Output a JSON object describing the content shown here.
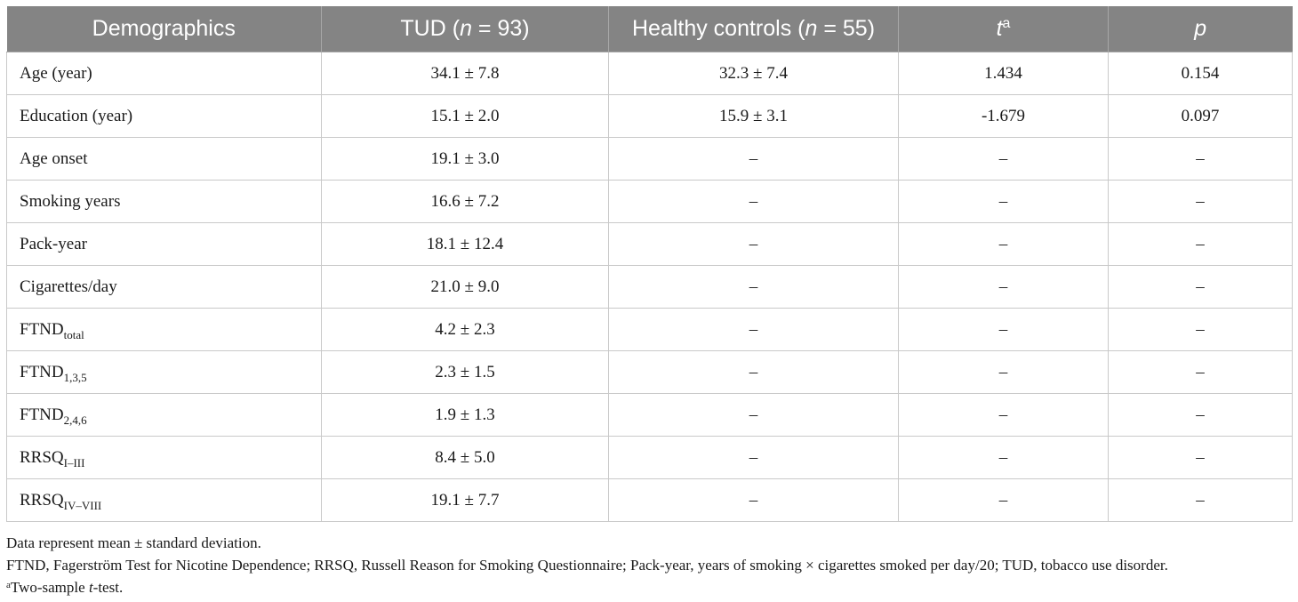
{
  "table": {
    "headers": {
      "demographics": "Demographics",
      "tud_prefix": "TUD (",
      "tud_n": "n",
      "tud_suffix": " = 93)",
      "hc_prefix": "Healthy controls (",
      "hc_n": "n",
      "hc_suffix": " = 55)",
      "t": "t",
      "t_sup": "a",
      "p": "p"
    },
    "rows": [
      {
        "label": "Age (year)",
        "sub": "",
        "tud": "34.1 ± 7.8",
        "hc": "32.3 ± 7.4",
        "t": "1.434",
        "p": "0.154"
      },
      {
        "label": "Education (year)",
        "sub": "",
        "tud": "15.1 ± 2.0",
        "hc": "15.9 ± 3.1",
        "t": "-1.679",
        "p": "0.097"
      },
      {
        "label": "Age onset",
        "sub": "",
        "tud": "19.1 ± 3.0",
        "hc": "–",
        "t": "–",
        "p": "–"
      },
      {
        "label": "Smoking years",
        "sub": "",
        "tud": "16.6 ± 7.2",
        "hc": "–",
        "t": "–",
        "p": "–"
      },
      {
        "label": "Pack-year",
        "sub": "",
        "tud": "18.1 ± 12.4",
        "hc": "–",
        "t": "–",
        "p": "–"
      },
      {
        "label": "Cigarettes/day",
        "sub": "",
        "tud": "21.0 ± 9.0",
        "hc": "–",
        "t": "–",
        "p": "–"
      },
      {
        "label": "FTND",
        "sub": "total",
        "tud": "4.2 ± 2.3",
        "hc": "–",
        "t": "–",
        "p": "–"
      },
      {
        "label": "FTND",
        "sub": "1,3,5",
        "tud": "2.3 ± 1.5",
        "hc": "–",
        "t": "–",
        "p": "–"
      },
      {
        "label": "FTND",
        "sub": "2,4,6",
        "tud": "1.9 ± 1.3",
        "hc": "–",
        "t": "–",
        "p": "–"
      },
      {
        "label": "RRSQ",
        "sub": "I–III",
        "tud": "8.4 ± 5.0",
        "hc": "–",
        "t": "–",
        "p": "–"
      },
      {
        "label": "RRSQ",
        "sub": "IV–VIII",
        "tud": "19.1 ± 7.7",
        "hc": "–",
        "t": "–",
        "p": "–"
      }
    ]
  },
  "footnotes": {
    "line1": "Data represent mean ± standard deviation.",
    "line2": "FTND, Fagerström Test for Nicotine Dependence; RRSQ, Russell Reason for Smoking Questionnaire; Pack-year, years of smoking × cigarettes smoked per day/20; TUD, tobacco use disorder.",
    "line3_sup": "a",
    "line3_pre": "Two-sample ",
    "line3_ital": "t",
    "line3_post": "-test."
  }
}
